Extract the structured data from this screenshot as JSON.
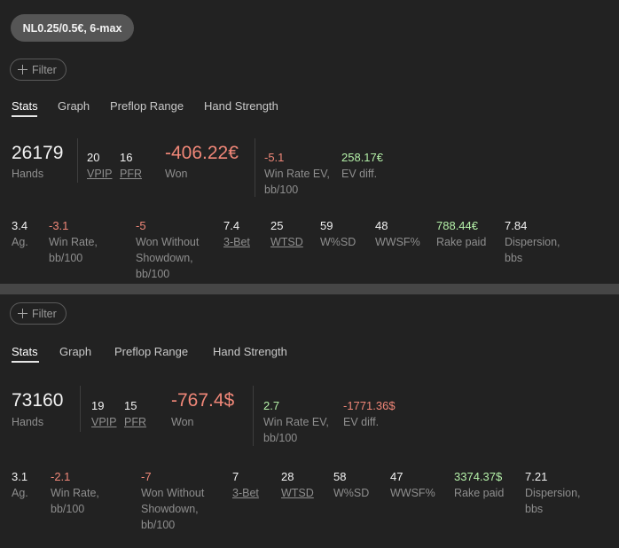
{
  "panel1": {
    "game_label": "NL0.25/0.5€, 6-max",
    "filter_label": "Filter",
    "tabs": [
      "Stats",
      "Graph",
      "Preflop Range",
      "Hand Strength"
    ],
    "hands": {
      "value": "26179",
      "label": "Hands"
    },
    "vpip": {
      "value": "20",
      "label": "VPIP"
    },
    "pfr": {
      "value": "16",
      "label": "PFR"
    },
    "won": {
      "value": "-406.22€",
      "label": "Won"
    },
    "win_rate_ev": {
      "value": "-5.1",
      "label_line1": "Win Rate EV,",
      "label_line2": "bb/100"
    },
    "ev_diff": {
      "value": "258.17€",
      "label": "EV diff."
    },
    "row2": {
      "ag": {
        "value": "3.4",
        "label": "Ag."
      },
      "win_rate": {
        "value": "-3.1",
        "label_line1": "Win Rate,",
        "label_line2": "bb/100"
      },
      "won_without_showdown": {
        "value": "-5",
        "label_line1": "Won Without",
        "label_line2": "Showdown,",
        "label_line3": "bb/100"
      },
      "three_bet": {
        "value": "7.4",
        "label": "3-Bet"
      },
      "wtsd": {
        "value": "25",
        "label": "WTSD"
      },
      "w_sd": {
        "value": "59",
        "label": "W%SD"
      },
      "wwsf": {
        "value": "48",
        "label": "WWSF%"
      },
      "rake_paid": {
        "value": "788.44€",
        "label": "Rake paid"
      },
      "dispersion": {
        "value": "7.84",
        "label_line1": "Dispersion,",
        "label_line2": "bbs"
      }
    }
  },
  "panel2": {
    "filter_label": "Filter",
    "tabs": [
      "Stats",
      "Graph",
      "Preflop Range",
      "Hand Strength"
    ],
    "hands": {
      "value": "73160",
      "label": "Hands"
    },
    "vpip": {
      "value": "19",
      "label": "VPIP"
    },
    "pfr": {
      "value": "15",
      "label": "PFR"
    },
    "won": {
      "value": "-767.4$",
      "label": "Won"
    },
    "win_rate_ev": {
      "value": "2.7",
      "label_line1": "Win Rate EV,",
      "label_line2": "bb/100"
    },
    "ev_diff": {
      "value": "-1771.36$",
      "label": "EV diff."
    },
    "row2": {
      "ag": {
        "value": "3.1",
        "label": "Ag."
      },
      "win_rate": {
        "value": "-2.1",
        "label_line1": "Win Rate,",
        "label_line2": "bb/100"
      },
      "won_without_showdown": {
        "value": "-7",
        "label_line1": "Won Without",
        "label_line2": "Showdown,",
        "label_line3": "bb/100"
      },
      "three_bet": {
        "value": "7",
        "label": "3-Bet"
      },
      "wtsd": {
        "value": "28",
        "label": "WTSD"
      },
      "w_sd": {
        "value": "58",
        "label": "W%SD"
      },
      "wwsf": {
        "value": "47",
        "label": "WWSF%"
      },
      "rake_paid": {
        "value": "3374.37$",
        "label": "Rake paid"
      },
      "dispersion": {
        "value": "7.21",
        "label_line1": "Dispersion,",
        "label_line2": "bbs"
      }
    }
  },
  "colors": {
    "background": "#222222",
    "separator": "#464646",
    "negative": "#f08778",
    "positive": "#b4f0a8",
    "muted_label": "#8e8e8e"
  },
  "icons": {
    "filter": "plus-icon"
  }
}
